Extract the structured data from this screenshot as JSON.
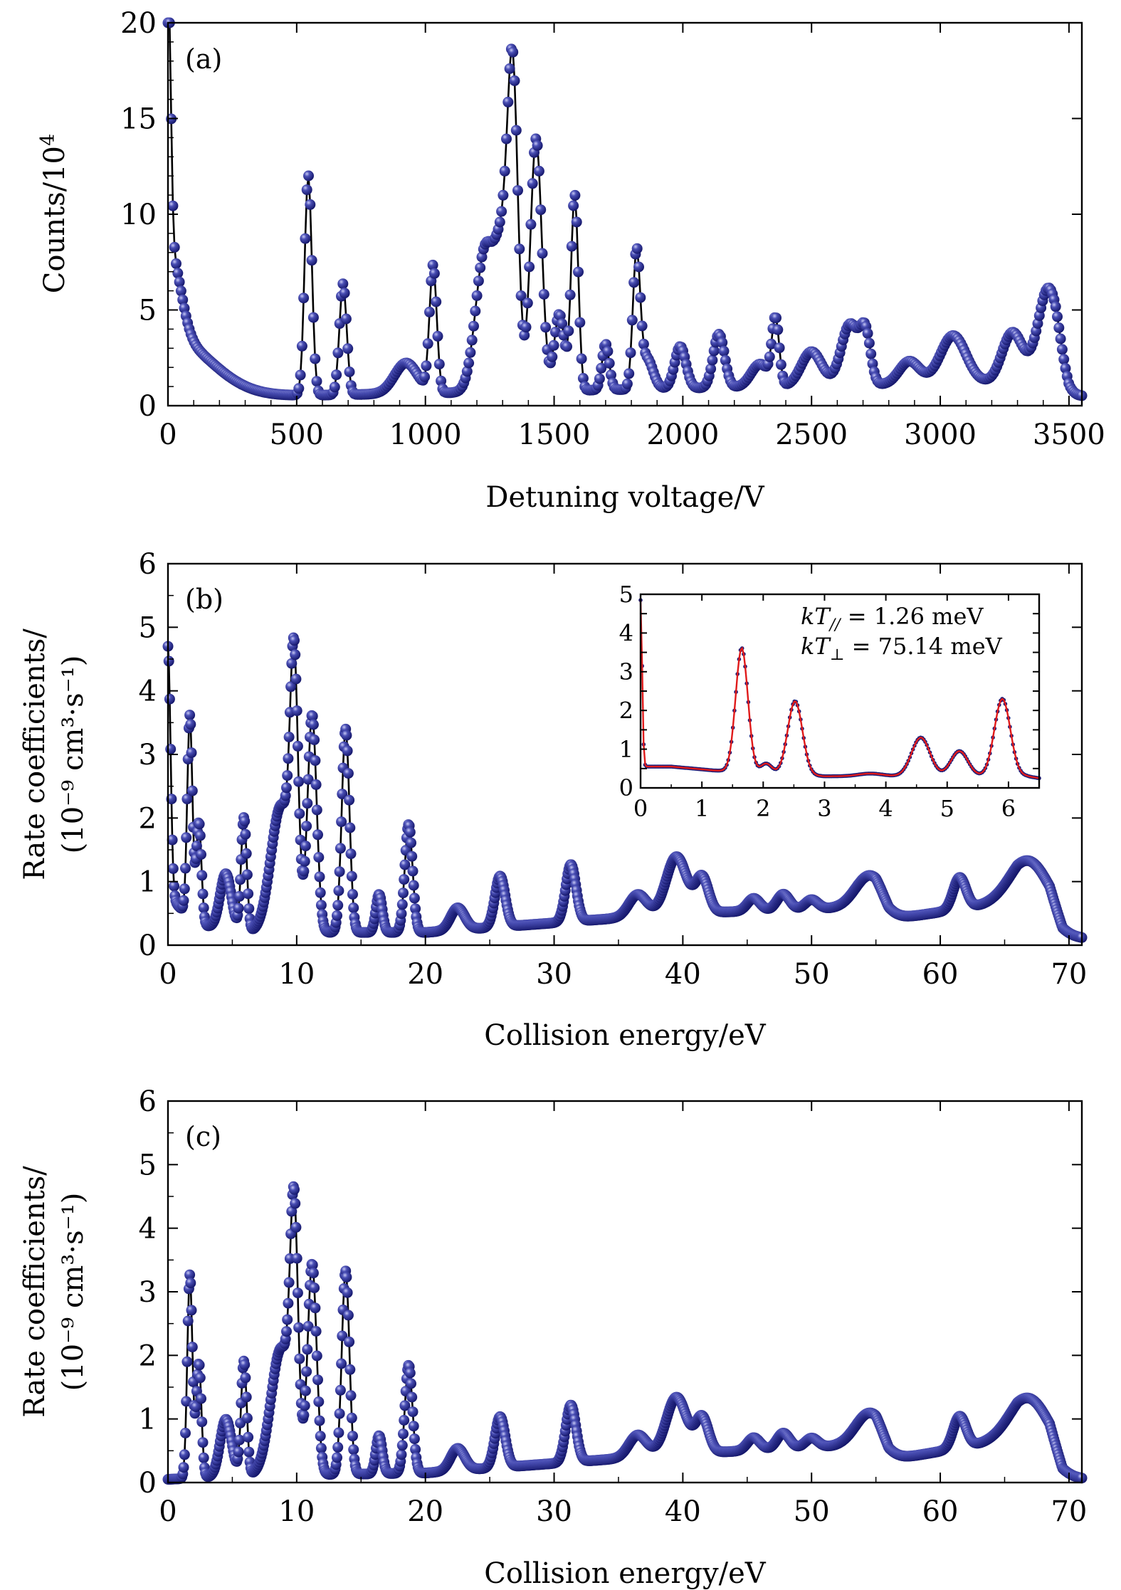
{
  "colors": {
    "marker": "#1b1d7a",
    "marker_highlight": "#8f93e0",
    "line": "#000000",
    "fit": "#e01a1a"
  },
  "chart_data": [
    {
      "type": "line",
      "panel_label": "(a)",
      "xlabel": "Detuning voltage/V",
      "ylabel_text": "Counts/10",
      "ylabel_sup": "4",
      "xlim": [
        0,
        3550
      ],
      "ylim": [
        0,
        20
      ],
      "xticks": [
        "0",
        "500",
        "1000",
        "1500",
        "2000",
        "2500",
        "3000",
        "3500"
      ],
      "yticks": [
        "0",
        "5",
        "10",
        "15",
        "20"
      ],
      "peaks": [
        [
          0,
          15.5,
          10
        ],
        [
          8,
          4.5,
          40
        ],
        [
          0,
          3.2,
          160
        ],
        [
          545,
          11.5,
          14
        ],
        [
          680,
          5.8,
          14
        ],
        [
          925,
          1.6,
          45
        ],
        [
          1030,
          6.6,
          14
        ],
        [
          1230,
          7.2,
          35
        ],
        [
          1300,
          7,
          30
        ],
        [
          1340,
          14.8,
          20
        ],
        [
          1430,
          13.2,
          22
        ],
        [
          1520,
          4.0,
          20
        ],
        [
          1580,
          10.2,
          14
        ],
        [
          1700,
          2.4,
          14
        ],
        [
          1820,
          7.0,
          14
        ],
        [
          1860,
          1.6,
          24
        ],
        [
          1990,
          2.2,
          22
        ],
        [
          2140,
          2.8,
          22
        ],
        [
          2300,
          1.2,
          35
        ],
        [
          2360,
          3.4,
          14
        ],
        [
          2500,
          1.8,
          40
        ],
        [
          2650,
          3.2,
          35
        ],
        [
          2710,
          2.4,
          20
        ],
        [
          2880,
          1.2,
          40
        ],
        [
          3050,
          2.5,
          50
        ],
        [
          3280,
          2.5,
          40
        ],
        [
          3420,
          4.6,
          40
        ]
      ],
      "base_points": [
        [
          0,
          0.4
        ],
        [
          3200,
          1.2
        ],
        [
          3450,
          1.6
        ],
        [
          3500,
          0.5
        ],
        [
          3550,
          0.5
        ]
      ],
      "n_points": 560
    },
    {
      "type": "line",
      "panel_label": "(b)",
      "xlabel": "Collision energy/eV",
      "ylabel_line1": "Rate coefficients/",
      "ylabel_line2": "(10⁻⁹ cm³·s⁻¹)",
      "xlim": [
        0,
        71
      ],
      "ylim": [
        0,
        6
      ],
      "xticks": [
        "0",
        "10",
        "20",
        "30",
        "40",
        "50",
        "60",
        "70"
      ],
      "yticks": [
        "0",
        "1",
        "2",
        "3",
        "4",
        "5",
        "6"
      ],
      "peaks": [
        [
          0,
          3.9,
          0.2
        ],
        [
          1.7,
          3.2,
          0.2
        ],
        [
          2.4,
          1.6,
          0.2
        ],
        [
          4.5,
          0.9,
          0.45
        ],
        [
          5.9,
          1.8,
          0.22
        ],
        [
          8.8,
          2.0,
          0.8
        ],
        [
          9.8,
          3.7,
          0.3
        ],
        [
          11.2,
          3.4,
          0.35
        ],
        [
          13.8,
          3.2,
          0.3
        ],
        [
          16.4,
          0.6,
          0.25
        ],
        [
          18.7,
          1.7,
          0.3
        ],
        [
          22.5,
          0.35,
          0.55
        ],
        [
          25.8,
          0.8,
          0.4
        ],
        [
          31.3,
          0.9,
          0.4
        ],
        [
          36.5,
          0.35,
          0.7
        ],
        [
          39.5,
          0.9,
          0.8
        ],
        [
          41.5,
          0.55,
          0.5
        ],
        [
          45.5,
          0.2,
          0.5
        ],
        [
          47.8,
          0.25,
          0.5
        ],
        [
          50,
          0.15,
          0.5
        ],
        [
          54.5,
          0.5,
          1.1
        ],
        [
          61.5,
          0.5,
          0.5
        ],
        [
          67,
          0.7,
          1.5
        ]
      ],
      "base_points": [
        [
          0,
          0.8
        ],
        [
          2,
          0.35
        ],
        [
          5,
          0.2
        ],
        [
          20,
          0.2
        ],
        [
          40,
          0.5
        ],
        [
          55,
          0.6
        ],
        [
          56,
          0.4
        ],
        [
          66,
          0.7
        ],
        [
          68.5,
          0.5
        ],
        [
          69.5,
          0.1
        ],
        [
          71,
          0.1
        ]
      ],
      "n_points": 1050,
      "inset": {
        "annotation_kt_par_label": "kT",
        "annotation_kt_par_sub": "//",
        "annotation_kt_par_value": " = 1.26 meV",
        "annotation_kt_perp_label": "kT",
        "annotation_kt_perp_sub": "⊥",
        "annotation_kt_perp_value": " = 75.14 meV",
        "xlim": [
          0,
          6.5
        ],
        "ylim": [
          0,
          5
        ],
        "xticks": [
          "0",
          "1",
          "2",
          "3",
          "4",
          "5",
          "6"
        ],
        "yticks": [
          "0",
          "0.5",
          "1",
          "1.5",
          "2",
          "2.5",
          "3",
          "3.5",
          "4",
          "4.5",
          "5"
        ],
        "ytick_labels_shown": [
          "0",
          "1",
          "2",
          "3",
          "4",
          "5"
        ],
        "peaks": [
          [
            0,
            4.3,
            0.025
          ],
          [
            1.65,
            3.2,
            0.1
          ],
          [
            2.05,
            0.25,
            0.09
          ],
          [
            2.52,
            1.9,
            0.12
          ],
          [
            3.75,
            0.07,
            0.2
          ],
          [
            4.57,
            1.0,
            0.15
          ],
          [
            5.2,
            0.65,
            0.14
          ],
          [
            5.9,
            2.0,
            0.13
          ]
        ],
        "base_points": [
          [
            0,
            0.55
          ],
          [
            0.5,
            0.55
          ],
          [
            1.2,
            0.45
          ],
          [
            3.0,
            0.3
          ],
          [
            6.3,
            0.3
          ],
          [
            6.5,
            0.25
          ]
        ],
        "n_points": 260
      }
    },
    {
      "type": "line",
      "panel_label": "(c)",
      "xlabel": "Collision energy/eV",
      "ylabel_line1": "Rate coefficients/",
      "ylabel_line2": "(10⁻⁹ cm³·s⁻¹)",
      "xlim": [
        0,
        71
      ],
      "ylim": [
        0,
        6
      ],
      "xticks": [
        "0",
        "10",
        "20",
        "30",
        "40",
        "50",
        "60",
        "70"
      ],
      "yticks": [
        "0",
        "1",
        "2",
        "3",
        "4",
        "5",
        "6"
      ],
      "peaks": [
        [
          1.7,
          3.2,
          0.2
        ],
        [
          2.4,
          1.8,
          0.2
        ],
        [
          4.5,
          0.9,
          0.45
        ],
        [
          5.9,
          1.8,
          0.22
        ],
        [
          8.8,
          2.0,
          0.8
        ],
        [
          9.8,
          3.6,
          0.3
        ],
        [
          11.2,
          3.3,
          0.35
        ],
        [
          13.8,
          3.2,
          0.3
        ],
        [
          16.4,
          0.6,
          0.25
        ],
        [
          18.7,
          1.7,
          0.3
        ],
        [
          22.5,
          0.35,
          0.55
        ],
        [
          25.8,
          0.8,
          0.4
        ],
        [
          31.3,
          0.9,
          0.4
        ],
        [
          36.5,
          0.35,
          0.7
        ],
        [
          39.5,
          0.9,
          0.8
        ],
        [
          41.5,
          0.55,
          0.5
        ],
        [
          45.5,
          0.2,
          0.5
        ],
        [
          47.8,
          0.25,
          0.5
        ],
        [
          50,
          0.15,
          0.5
        ],
        [
          54.5,
          0.5,
          1.1
        ],
        [
          61.5,
          0.5,
          0.5
        ],
        [
          67,
          0.7,
          1.5
        ]
      ],
      "base_points": [
        [
          0,
          0.05
        ],
        [
          5,
          0.1
        ],
        [
          20,
          0.15
        ],
        [
          40,
          0.45
        ],
        [
          55,
          0.6
        ],
        [
          56,
          0.35
        ],
        [
          66,
          0.7
        ],
        [
          68.5,
          0.5
        ],
        [
          69.5,
          0.05
        ],
        [
          71,
          0.05
        ]
      ],
      "n_points": 1050
    }
  ]
}
